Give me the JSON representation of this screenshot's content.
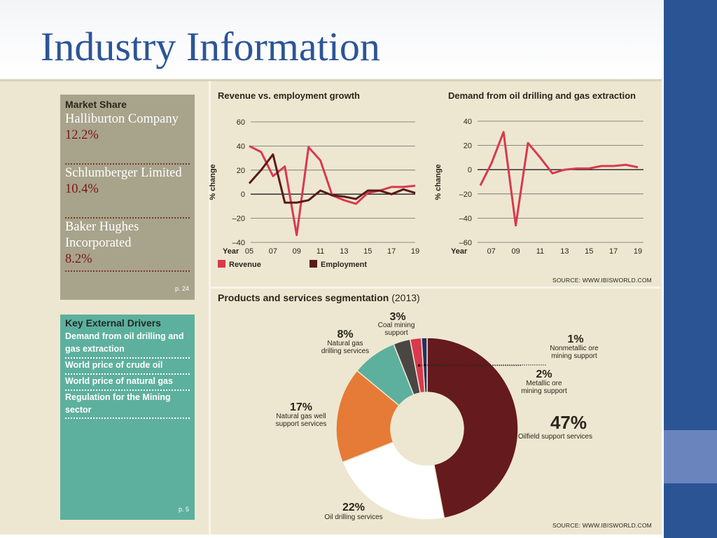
{
  "slide": {
    "title": "Industry Information"
  },
  "market_share": {
    "heading": "Market Share",
    "companies": [
      {
        "name": "Halliburton Company",
        "share": "12.2%"
      },
      {
        "name": "Schlumberger Limited",
        "share": "10.4%"
      },
      {
        "name": "Baker Hughes Incorporated",
        "share": "8.2%"
      }
    ],
    "page_ref": "p. 24"
  },
  "drivers": {
    "heading": "Key External Drivers",
    "items": [
      "Demand from oil drilling and gas extraction",
      "World price of crude oil",
      "World price of natural gas",
      "Regulation for the Mining sector"
    ],
    "page_ref": "p. 5"
  },
  "sources": {
    "top": "SOURCE: WWW.IBISWORLD.COM",
    "bottom": "SOURCE: WWW.IBISWORLD.COM"
  },
  "colors": {
    "revenue": "#d9394e",
    "employment": "#5a1a1a",
    "accent": "#2b5494",
    "oilfield": "#651a1d",
    "drilling": "#ffffff",
    "gaswell": "#e57b36",
    "gasdrilling": "#5db09e",
    "coal": "#4a4644",
    "metallic": "#d9394e",
    "nonmetallic": "#25305e"
  },
  "chart_data": [
    {
      "type": "line",
      "title": "Revenue vs. employment growth",
      "ylabel": "% change",
      "xlabel": "Year",
      "ylim": [
        -40,
        60
      ],
      "yticks": [
        -40,
        -20,
        0,
        20,
        40,
        60
      ],
      "xticks": [
        "05",
        "07",
        "09",
        "11",
        "13",
        "15",
        "17",
        "19"
      ],
      "x": [
        2005,
        2006,
        2007,
        2008,
        2009,
        2010,
        2011,
        2012,
        2013,
        2014,
        2015,
        2016,
        2017,
        2018,
        2019
      ],
      "series": [
        {
          "name": "Revenue",
          "values": [
            40,
            35,
            15,
            23,
            -34,
            39,
            28,
            -1,
            -5,
            -8,
            1,
            3,
            6,
            6,
            7
          ]
        },
        {
          "name": "Employment",
          "values": [
            9,
            20,
            33,
            -7,
            -7,
            -5,
            3,
            -1,
            -2,
            -4,
            3,
            3,
            0,
            4,
            1
          ]
        }
      ]
    },
    {
      "type": "line",
      "title": "Demand from oil drilling and gas extraction",
      "ylabel": "% change",
      "xlabel": "Year",
      "ylim": [
        -60,
        40
      ],
      "yticks": [
        -60,
        -40,
        -20,
        0,
        20,
        40
      ],
      "xticks": [
        "07",
        "09",
        "11",
        "13",
        "15",
        "17",
        "19"
      ],
      "x": [
        2006,
        2006.9,
        2007.9,
        2008.9,
        2009.9,
        2010.9,
        2011.9,
        2012.9,
        2013.9,
        2014.9,
        2015.9,
        2016.9,
        2017.9,
        2018.9
      ],
      "series": [
        {
          "values": [
            -13,
            5,
            31,
            -46,
            22,
            10,
            -3,
            0,
            1,
            1,
            3,
            3,
            4,
            2
          ]
        }
      ]
    },
    {
      "type": "pie",
      "title": "Products and services segmentation",
      "title_suffix": "(2013)",
      "slices": [
        {
          "label": "Oilfield support services",
          "value": 47,
          "pct": "47%"
        },
        {
          "label": "Oil drilling services",
          "value": 22,
          "pct": "22%"
        },
        {
          "label": "Natural gas well support services",
          "value": 17,
          "pct": "17%"
        },
        {
          "label": "Natural gas drilling services",
          "value": 8,
          "pct": "8%"
        },
        {
          "label": "Coal mining support",
          "value": 3,
          "pct": "3%"
        },
        {
          "label": "Metallic ore mining support",
          "value": 2,
          "pct": "2%"
        },
        {
          "label": "Nonmetallic ore mining support",
          "value": 1,
          "pct": "1%"
        }
      ]
    }
  ]
}
